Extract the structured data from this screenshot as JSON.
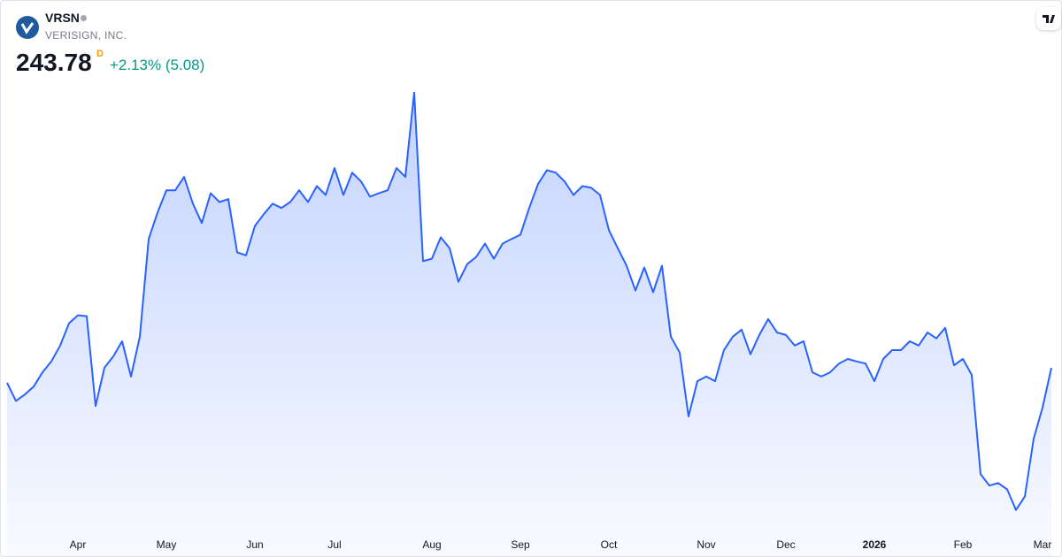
{
  "header": {
    "symbol": "VRSN",
    "name": "VERISIGN, INC.",
    "price": "243.78",
    "price_flag": "D",
    "change": "+2.13% (5.08)"
  },
  "chart_data": {
    "type": "area",
    "color": "#2962ff",
    "categories": [
      null,
      null,
      null,
      null,
      null,
      null,
      null,
      null,
      "Apr",
      null,
      null,
      null,
      null,
      null,
      null,
      null,
      null,
      null,
      "May",
      null,
      null,
      null,
      null,
      null,
      null,
      null,
      null,
      null,
      "Jun",
      null,
      null,
      null,
      null,
      null,
      null,
      null,
      null,
      "Jul",
      null,
      null,
      null,
      null,
      null,
      null,
      null,
      null,
      null,
      null,
      "Aug",
      null,
      null,
      null,
      null,
      null,
      null,
      null,
      null,
      null,
      "Sep",
      null,
      null,
      null,
      null,
      null,
      null,
      null,
      null,
      null,
      "Oct",
      null,
      null,
      null,
      null,
      null,
      null,
      null,
      null,
      null,
      null,
      "Nov",
      null,
      null,
      null,
      null,
      null,
      null,
      null,
      null,
      "Dec",
      null,
      null,
      null,
      null,
      null,
      null,
      null,
      null,
      null,
      "2026",
      null,
      null,
      null,
      null,
      null,
      null,
      null,
      null,
      null,
      "Feb",
      null,
      null,
      null,
      null,
      null,
      null,
      null,
      null,
      "Mar",
      null
    ],
    "values": [
      240.2,
      235.9,
      237.4,
      239.3,
      242.7,
      245.3,
      249.1,
      254.4,
      256.3,
      256.1,
      234.7,
      243.8,
      246.5,
      250.1,
      241.7,
      251.2,
      274.5,
      280.8,
      286.1,
      286.1,
      289.3,
      282.9,
      278.3,
      285.4,
      283.3,
      284.0,
      271.3,
      270.6,
      277.6,
      280.4,
      282.9,
      281.9,
      283.3,
      286.1,
      283.3,
      287.1,
      285.0,
      291.4,
      285.0,
      290.3,
      288.2,
      284.6,
      285.4,
      286.1,
      291.4,
      289.3,
      309.4,
      269.2,
      269.8,
      274.9,
      272.3,
      264.3,
      268.5,
      270.2,
      273.4,
      269.8,
      273.4,
      274.5,
      275.5,
      281.9,
      287.6,
      290.9,
      290.3,
      288.2,
      285.0,
      287.1,
      286.7,
      285.0,
      276.6,
      272.3,
      268.1,
      262.2,
      267.7,
      261.8,
      268.1,
      251.2,
      247.4,
      232.2,
      240.6,
      241.7,
      240.6,
      248.0,
      251.2,
      252.9,
      247.0,
      251.6,
      255.4,
      252.2,
      251.6,
      249.1,
      250.1,
      242.7,
      241.7,
      242.7,
      244.8,
      245.9,
      245.3,
      244.8,
      240.6,
      245.9,
      248.0,
      248.0,
      250.1,
      249.1,
      252.2,
      250.8,
      253.3,
      244.4,
      245.9,
      242.1,
      218.4,
      215.7,
      216.3,
      214.8,
      209.9,
      213.1,
      226.9,
      234.3,
      243.78
    ],
    "ylim": [
      205,
      312.5
    ]
  }
}
